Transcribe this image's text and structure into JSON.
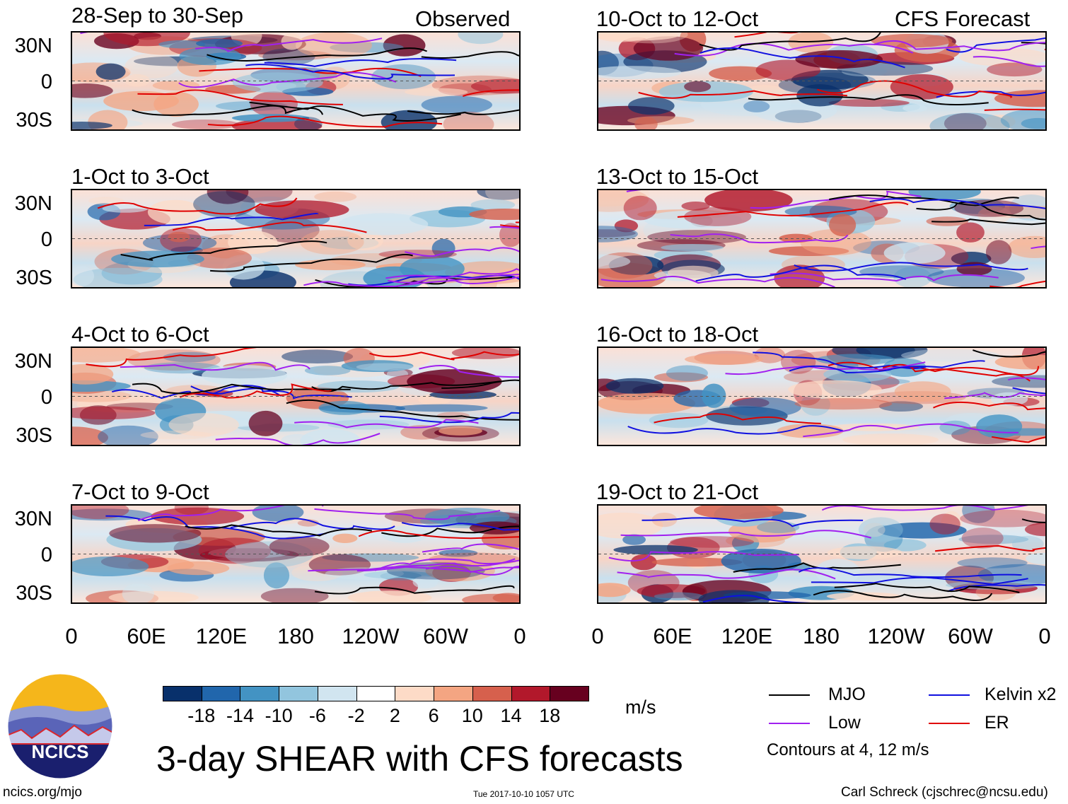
{
  "chart_data": {
    "type": "heatmap",
    "title": "3-day SHEAR with CFS forecasts",
    "units": "m/s",
    "y_ticks": [
      "30N",
      "0",
      "30S"
    ],
    "x_ticks": [
      "0",
      "60E",
      "120E",
      "180",
      "120W",
      "60W",
      "0"
    ],
    "observed_label": "Observed",
    "forecast_label": "CFS Forecast",
    "panels_left": [
      {
        "title": "28-Sep to 30-Sep"
      },
      {
        "title": "1-Oct to 3-Oct"
      },
      {
        "title": "4-Oct to 6-Oct"
      },
      {
        "title": "7-Oct to 9-Oct"
      }
    ],
    "panels_right": [
      {
        "title": "10-Oct to 12-Oct"
      },
      {
        "title": "13-Oct to 15-Oct"
      },
      {
        "title": "16-Oct to 18-Oct"
      },
      {
        "title": "19-Oct to 21-Oct"
      }
    ],
    "colorbar": {
      "colors": [
        "#08306b",
        "#2166ac",
        "#4393c3",
        "#92c5de",
        "#d1e5f0",
        "#ffffff",
        "#fddbc7",
        "#f4a582",
        "#d6604d",
        "#b2182b",
        "#67001f"
      ],
      "labels": [
        "-18",
        "-14",
        "-10",
        "-6",
        "-2",
        "2",
        "6",
        "10",
        "14",
        "18"
      ]
    },
    "legend": [
      {
        "label": "MJO",
        "color": "#000000"
      },
      {
        "label": "Kelvin x2",
        "color": "#1010e0"
      },
      {
        "label": "Low",
        "color": "#a020f0"
      },
      {
        "label": "ER",
        "color": "#e00000"
      }
    ],
    "contour_note": "Contours at 4, 12 m/s"
  },
  "logo": {
    "text": "NCICS"
  },
  "footer": {
    "url": "ncics.org/mjo",
    "timestamp": "Tue 2017-10-10 1057 UTC",
    "author": "Carl Schreck (cjschrec@ncsu.edu)"
  }
}
